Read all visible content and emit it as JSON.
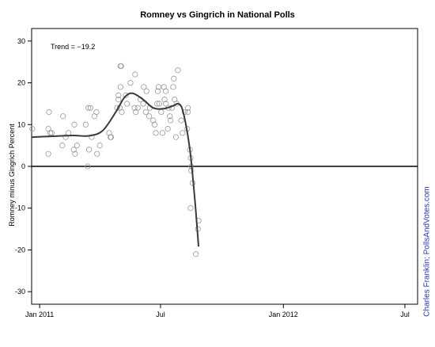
{
  "chart_data": {
    "type": "scatter",
    "title": "Romney vs Gingrich in National Polls",
    "ylabel": "Romney minus Gingrich Percent",
    "xlabel": "",
    "ylim": [
      -33,
      33
    ],
    "xlim": [
      "2010-12-20",
      "2012-07-20"
    ],
    "yticks": [
      30,
      20,
      10,
      0,
      -10,
      -20,
      -30
    ],
    "xticks": [
      {
        "date": "2011-01-01",
        "label": "Jan 2011"
      },
      {
        "date": "2011-07-01",
        "label": "Jul"
      },
      {
        "date": "2012-01-01",
        "label": "Jan 2012"
      },
      {
        "date": "2012-07-01",
        "label": "Jul"
      }
    ],
    "annotation": "Trend = −19.2",
    "credit": "Charles Franklin; PollsAndVotes.com",
    "zero_line": true,
    "grid": false,
    "series": [
      {
        "kind": "points",
        "points": [
          {
            "x": "2010-12-21",
            "y": 9
          },
          {
            "x": "2011-01-14",
            "y": 9
          },
          {
            "x": "2011-01-14",
            "y": 3
          },
          {
            "x": "2011-01-15",
            "y": 13
          },
          {
            "x": "2011-01-17",
            "y": 8
          },
          {
            "x": "2011-01-19",
            "y": 8
          },
          {
            "x": "2011-02-04",
            "y": 5
          },
          {
            "x": "2011-02-05",
            "y": 12
          },
          {
            "x": "2011-02-09",
            "y": 7
          },
          {
            "x": "2011-02-13",
            "y": 8
          },
          {
            "x": "2011-02-21",
            "y": 4
          },
          {
            "x": "2011-02-23",
            "y": 3
          },
          {
            "x": "2011-02-22",
            "y": 10
          },
          {
            "x": "2011-02-26",
            "y": 5
          },
          {
            "x": "2011-03-11",
            "y": 10
          },
          {
            "x": "2011-03-14",
            "y": 0
          },
          {
            "x": "2011-03-16",
            "y": 4
          },
          {
            "x": "2011-03-15",
            "y": 14
          },
          {
            "x": "2011-03-18",
            "y": 14
          },
          {
            "x": "2011-03-20",
            "y": 7
          },
          {
            "x": "2011-03-24",
            "y": 12
          },
          {
            "x": "2011-03-27",
            "y": 13
          },
          {
            "x": "2011-03-28",
            "y": 3
          },
          {
            "x": "2011-04-01",
            "y": 5
          },
          {
            "x": "2011-04-15",
            "y": 8
          },
          {
            "x": "2011-04-17",
            "y": 7
          },
          {
            "x": "2011-04-18",
            "y": 7
          },
          {
            "x": "2011-04-27",
            "y": 14
          },
          {
            "x": "2011-04-29",
            "y": 16
          },
          {
            "x": "2011-04-29",
            "y": 17
          },
          {
            "x": "2011-05-02",
            "y": 24
          },
          {
            "x": "2011-05-03",
            "y": 24
          },
          {
            "x": "2011-05-02",
            "y": 19
          },
          {
            "x": "2011-05-01",
            "y": 14
          },
          {
            "x": "2011-05-04",
            "y": 13
          },
          {
            "x": "2011-05-12",
            "y": 15
          },
          {
            "x": "2011-05-10",
            "y": 17
          },
          {
            "x": "2011-05-17",
            "y": 20
          },
          {
            "x": "2011-05-23",
            "y": 14
          },
          {
            "x": "2011-05-24",
            "y": 22
          },
          {
            "x": "2011-05-25",
            "y": 13
          },
          {
            "x": "2011-05-28",
            "y": 14
          },
          {
            "x": "2011-06-01",
            "y": 16
          },
          {
            "x": "2011-06-05",
            "y": 15
          },
          {
            "x": "2011-06-06",
            "y": 19
          },
          {
            "x": "2011-06-09",
            "y": 13
          },
          {
            "x": "2011-06-10",
            "y": 18
          },
          {
            "x": "2011-06-14",
            "y": 12
          },
          {
            "x": "2011-06-15",
            "y": 14
          },
          {
            "x": "2011-06-20",
            "y": 11
          },
          {
            "x": "2011-06-22",
            "y": 10
          },
          {
            "x": "2011-06-24",
            "y": 8
          },
          {
            "x": "2011-06-26",
            "y": 15
          },
          {
            "x": "2011-06-27",
            "y": 18
          },
          {
            "x": "2011-06-28",
            "y": 19
          },
          {
            "x": "2011-06-29",
            "y": 15
          },
          {
            "x": "2011-07-02",
            "y": 13
          },
          {
            "x": "2011-07-04",
            "y": 8
          },
          {
            "x": "2011-07-06",
            "y": 19
          },
          {
            "x": "2011-07-07",
            "y": 16
          },
          {
            "x": "2011-07-09",
            "y": 15
          },
          {
            "x": "2011-07-09",
            "y": 18
          },
          {
            "x": "2011-07-12",
            "y": 9
          },
          {
            "x": "2011-07-13",
            "y": 14
          },
          {
            "x": "2011-07-15",
            "y": 12
          },
          {
            "x": "2011-07-16",
            "y": 11
          },
          {
            "x": "2011-07-18",
            "y": 14
          },
          {
            "x": "2011-07-20",
            "y": 19
          },
          {
            "x": "2011-07-21",
            "y": 21
          },
          {
            "x": "2011-07-22",
            "y": 16
          },
          {
            "x": "2011-07-24",
            "y": 7
          },
          {
            "x": "2011-07-25",
            "y": 15
          },
          {
            "x": "2011-07-27",
            "y": 23
          },
          {
            "x": "2011-08-01",
            "y": 11
          },
          {
            "x": "2011-08-03",
            "y": 8
          },
          {
            "x": "2011-08-06",
            "y": 13
          },
          {
            "x": "2011-08-10",
            "y": 9
          },
          {
            "x": "2011-08-11",
            "y": 14
          },
          {
            "x": "2011-08-11",
            "y": 13
          },
          {
            "x": "2011-08-14",
            "y": 4
          },
          {
            "x": "2011-08-15",
            "y": 2
          },
          {
            "x": "2011-08-16",
            "y": 0
          },
          {
            "x": "2011-08-16",
            "y": -1
          },
          {
            "x": "2011-08-18",
            "y": -4
          },
          {
            "x": "2011-08-15",
            "y": -10
          },
          {
            "x": "2011-08-23",
            "y": -21
          },
          {
            "x": "2011-08-27",
            "y": -13
          },
          {
            "x": "2011-08-26",
            "y": -15
          }
        ]
      },
      {
        "kind": "trend",
        "points": [
          {
            "x": "2010-12-20",
            "y": 7
          },
          {
            "x": "2011-01-20",
            "y": 7.2
          },
          {
            "x": "2011-02-20",
            "y": 7.4
          },
          {
            "x": "2011-03-15",
            "y": 7.3
          },
          {
            "x": "2011-04-05",
            "y": 8.5
          },
          {
            "x": "2011-04-25",
            "y": 13
          },
          {
            "x": "2011-05-08",
            "y": 16.5
          },
          {
            "x": "2011-05-20",
            "y": 17.5
          },
          {
            "x": "2011-06-05",
            "y": 16
          },
          {
            "x": "2011-06-20",
            "y": 14
          },
          {
            "x": "2011-07-05",
            "y": 13.8
          },
          {
            "x": "2011-07-20",
            "y": 14.5
          },
          {
            "x": "2011-07-27",
            "y": 15
          },
          {
            "x": "2011-08-02",
            "y": 14
          },
          {
            "x": "2011-08-08",
            "y": 10
          },
          {
            "x": "2011-08-14",
            "y": 4
          },
          {
            "x": "2011-08-18",
            "y": -2
          },
          {
            "x": "2011-08-22",
            "y": -9
          },
          {
            "x": "2011-08-27",
            "y": -19.2
          }
        ]
      }
    ]
  }
}
